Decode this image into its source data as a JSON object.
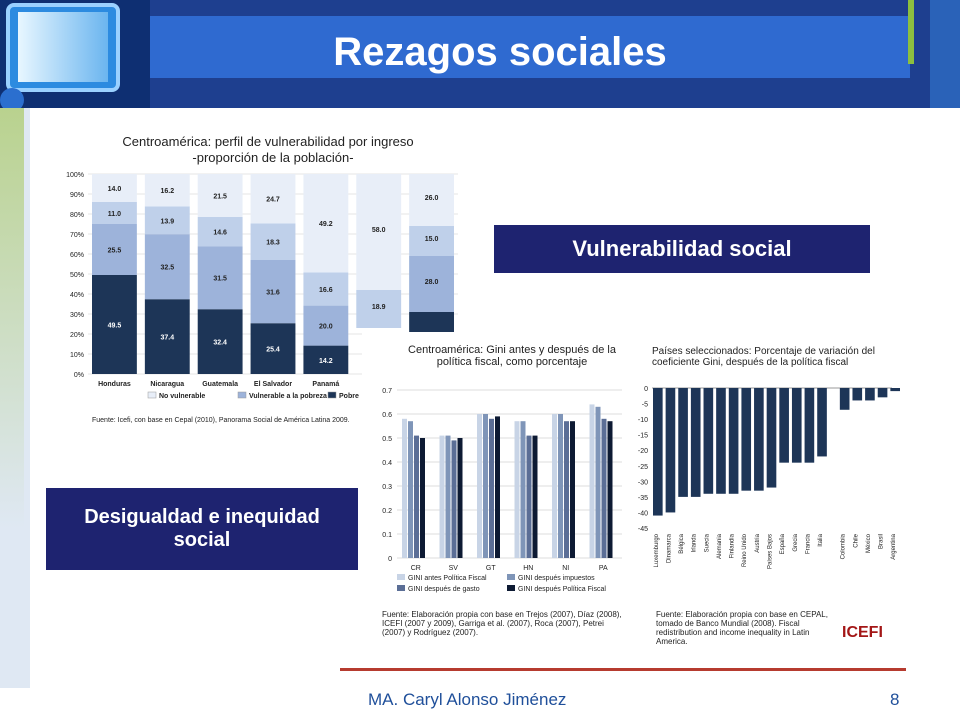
{
  "slide": {
    "title": "Rezagos sociales",
    "page_number": "8",
    "author": "MA. Caryl Alonso Jiménez"
  },
  "labels": {
    "vulnerabilidad": "Vulnerabilidad social",
    "desigualdad": "Desigualdad e inequidad social"
  },
  "chart_data": [
    {
      "type": "bar",
      "title": "Centroamérica: perfil de vulnerabilidad por ingreso",
      "subtitle": "-proporción de la población-",
      "categories": [
        "Honduras",
        "Nicaragua",
        "Guatemala",
        "El Salvador",
        "Panamá"
      ],
      "series": [
        {
          "name": "Pobre",
          "values": [
            49.5,
            37.4,
            32.4,
            25.4,
            14.2
          ]
        },
        {
          "name": "Vulnerable a la pobreza",
          "values": [
            25.5,
            32.5,
            31.5,
            31.6,
            20.0
          ]
        },
        {
          "name": "Vulnerable a la pobreza",
          "values": [
            11.0,
            13.9,
            14.6,
            18.3,
            16.6
          ]
        },
        {
          "name": "No vulnerable",
          "values": [
            14.0,
            16.2,
            21.5,
            24.7,
            49.2
          ]
        }
      ],
      "extra_visible_labels": [
        "58.0",
        "18.9",
        "26.0",
        "15.0",
        "28.0"
      ],
      "ylim": [
        0,
        100
      ],
      "yticks": [
        "0%",
        "10%",
        "20%",
        "30%",
        "40%",
        "50%",
        "60%",
        "70%",
        "80%",
        "90%",
        "100%"
      ],
      "legend": [
        "No vulnerable",
        "Vulnerable a la pobreza",
        "Pobre"
      ],
      "source": "Fuente: Icefi, con base en Cepal (2010), Panorama Social de América Latina 2009."
    },
    {
      "type": "bar",
      "title": "Centroamérica: Gini antes y después de la política fiscal, como porcentaje",
      "categories": [
        "CR",
        "SV",
        "GT",
        "HN",
        "NI",
        "PA"
      ],
      "series": [
        {
          "name": "GINI antes Política Fiscal",
          "values": [
            0.58,
            0.51,
            0.6,
            0.57,
            0.6,
            0.64
          ]
        },
        {
          "name": "GINI después impuestos",
          "values": [
            0.57,
            0.51,
            0.6,
            0.57,
            0.6,
            0.63
          ]
        },
        {
          "name": "GINI después de gasto",
          "values": [
            0.51,
            0.49,
            0.58,
            0.51,
            0.57,
            0.58
          ]
        },
        {
          "name": "GINI después Política Fiscal",
          "values": [
            0.5,
            0.5,
            0.59,
            0.51,
            0.57,
            0.57
          ]
        }
      ],
      "ylim": [
        0,
        0.7
      ],
      "yticks": [
        "0",
        "0.1",
        "0.2",
        "0.3",
        "0.4",
        "0.5",
        "0.6",
        "0.7"
      ],
      "source": "Fuente: Elaboración propia con base en Trejos (2007), Díaz (2008), ICEFI (2007 y 2009), Garriga et al. (2007), Roca (2007), Petrei (2007) y Rodríguez (2007)."
    },
    {
      "type": "bar",
      "title": "Países seleccionados: Porcentaje de variación del coeficiente Gini, después de la política fiscal",
      "categories": [
        "Luxemburgo",
        "Dinamarca",
        "Bélgica",
        "Irlanda",
        "Suecia",
        "Alemania",
        "Finlandia",
        "Reino Unido",
        "Austria",
        "Países Bajos",
        "España",
        "Grecia",
        "Francia",
        "Italia",
        "Colombia",
        "Chile",
        "México",
        "Brasil",
        "Argentina"
      ],
      "values": [
        -41,
        -40,
        -35,
        -35,
        -34,
        -34,
        -34,
        -33,
        -33,
        -32,
        -24,
        -24,
        -24,
        -22,
        -7,
        -4,
        -4,
        -3,
        -1
      ],
      "ylim": [
        -45,
        0
      ],
      "yticks": [
        "0",
        "-5",
        "-10",
        "-15",
        "-20",
        "-25",
        "-30",
        "-35",
        "-40",
        "-45"
      ],
      "source": "Fuente: Elaboración propia con base en CEPAL, tomado de Banco Mundial (2008). Fiscal redistribution and income inequality in Latin America."
    }
  ],
  "logo_text": "ICEFI"
}
